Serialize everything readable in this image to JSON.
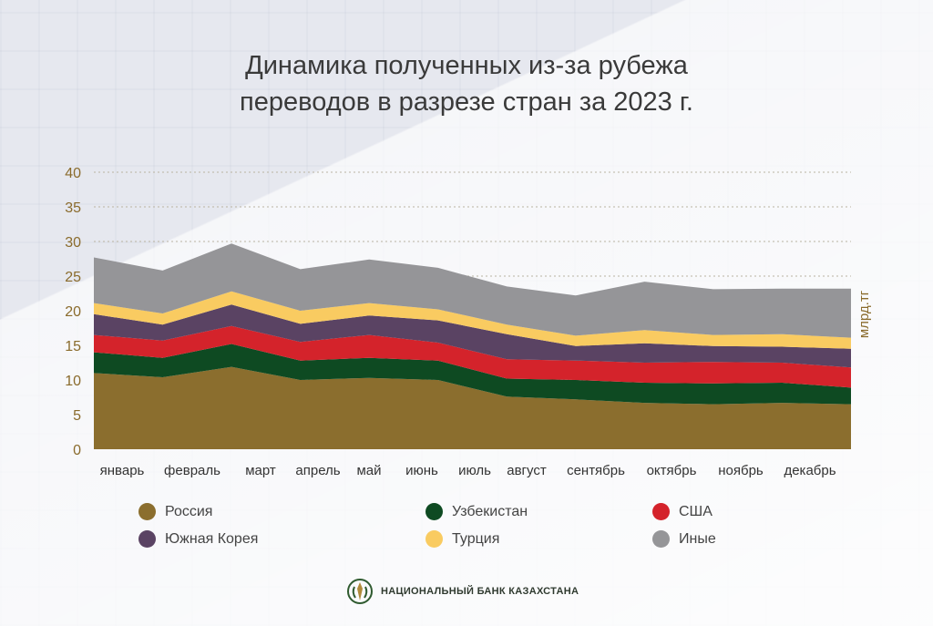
{
  "title": {
    "line1": "Динамика полученных из-за рубежа",
    "line2": "переводов в разрезе стран за 2023 г."
  },
  "unit": "млрд.тг",
  "brand": {
    "name": "НАЦИОНАЛЬНЫЙ БАНК КАЗАХСТАНА",
    "logo": "bank-emblem-icon"
  },
  "chart_data": {
    "type": "area",
    "stacked": true,
    "title": "Динамика полученных из-за рубежа переводов в разрезе стран за 2023 г.",
    "ylabel": "млрд.тг",
    "ylim": [
      0,
      40
    ],
    "yticks": [
      0,
      5,
      10,
      15,
      20,
      25,
      30,
      35,
      40
    ],
    "grid": "horizontal-dotted",
    "legend_position": "bottom",
    "categories": [
      "январь",
      "февраль",
      "март",
      "апрель",
      "май",
      "июнь",
      "июль",
      "август",
      "сентябрь",
      "октябрь",
      "ноябрь",
      "декабрь"
    ],
    "series": [
      {
        "name": "Россия",
        "color": "#8b6e2e",
        "values": [
          11.0,
          10.4,
          11.9,
          10.0,
          10.3,
          10.0,
          7.6,
          7.2,
          6.7,
          6.5,
          6.7,
          6.5
        ]
      },
      {
        "name": "Узбекистан",
        "color": "#0e4a22",
        "values": [
          3.0,
          2.8,
          3.3,
          2.8,
          2.9,
          2.8,
          2.6,
          2.8,
          2.9,
          3.0,
          2.9,
          2.4
        ]
      },
      {
        "name": "США",
        "color": "#d4232b",
        "values": [
          2.5,
          2.5,
          2.6,
          2.7,
          3.3,
          2.6,
          2.8,
          2.8,
          2.9,
          3.1,
          2.9,
          2.9
        ]
      },
      {
        "name": "Южная Корея",
        "color": "#5a4363",
        "values": [
          3.0,
          2.3,
          3.1,
          2.6,
          2.8,
          3.2,
          3.6,
          2.1,
          2.8,
          2.3,
          2.3,
          2.7
        ]
      },
      {
        "name": "Турция",
        "color": "#f9cb61",
        "values": [
          1.6,
          1.6,
          1.9,
          1.9,
          1.8,
          1.6,
          1.4,
          1.5,
          1.9,
          1.6,
          1.8,
          1.6
        ]
      },
      {
        "name": "Иные",
        "color": "#959598",
        "values": [
          6.6,
          6.2,
          6.9,
          6.0,
          6.3,
          6.0,
          5.5,
          5.8,
          7.0,
          6.6,
          6.6,
          7.1
        ]
      }
    ]
  }
}
